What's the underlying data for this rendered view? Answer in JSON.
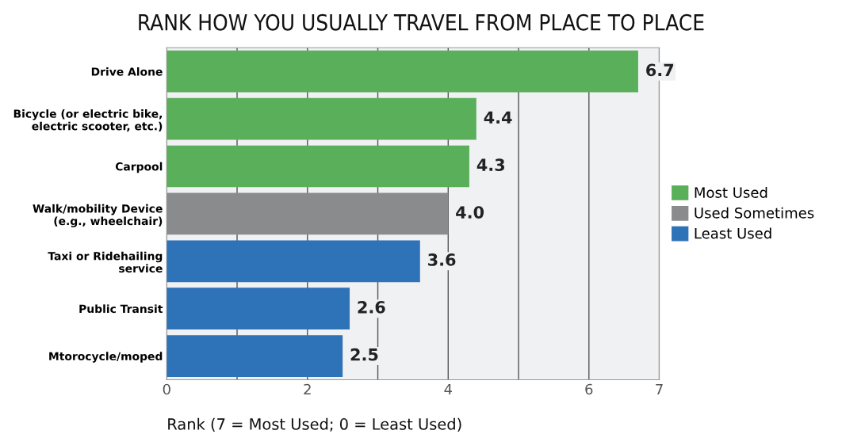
{
  "chart_data": {
    "type": "bar",
    "orientation": "horizontal",
    "stacked": true,
    "title": "RANK HOW YOU USUALLY TRAVEL FROM PLACE TO PLACE",
    "xlabel": "Rank (7 = Most Used; 0 = Least Used)",
    "categories": [
      "Drive Alone",
      "Bicycle (or electric bike,\nelectric scooter, etc.)",
      "Carpool",
      "Walk/mobility Device\n(e.g., wheelchair)",
      "Taxi or Ridehailing\nservice",
      "Public Transit",
      "Mtorocycle/moped"
    ],
    "series": [
      {
        "name": "Most Used",
        "color": "#5aaf5a",
        "values": [
          6.7,
          4.4,
          4.3,
          null,
          null,
          null,
          null
        ],
        "value_labels": [
          "6.7",
          "4.4",
          "4.3",
          null,
          null,
          null,
          null
        ]
      },
      {
        "name": "Used Sometimes",
        "color": "#8a8b8d",
        "values": [
          null,
          null,
          null,
          4.0,
          null,
          null,
          null
        ],
        "value_labels": [
          null,
          null,
          null,
          "4.0",
          null,
          null,
          null
        ]
      },
      {
        "name": "Least Used",
        "color": "#2e72b8",
        "values": [
          null,
          null,
          null,
          null,
          3.6,
          2.6,
          2.5
        ],
        "value_labels": [
          null,
          null,
          null,
          null,
          "3.6",
          "2.6",
          "2.5"
        ]
      }
    ],
    "xlim": [
      0,
      7
    ],
    "xticks": [
      0,
      {
        "value": 1,
        "label": null
      },
      2,
      {
        "value": 3,
        "label": null
      },
      4,
      {
        "value": 5,
        "label": null
      },
      6,
      7
    ],
    "grid": "x",
    "legend": "right"
  }
}
